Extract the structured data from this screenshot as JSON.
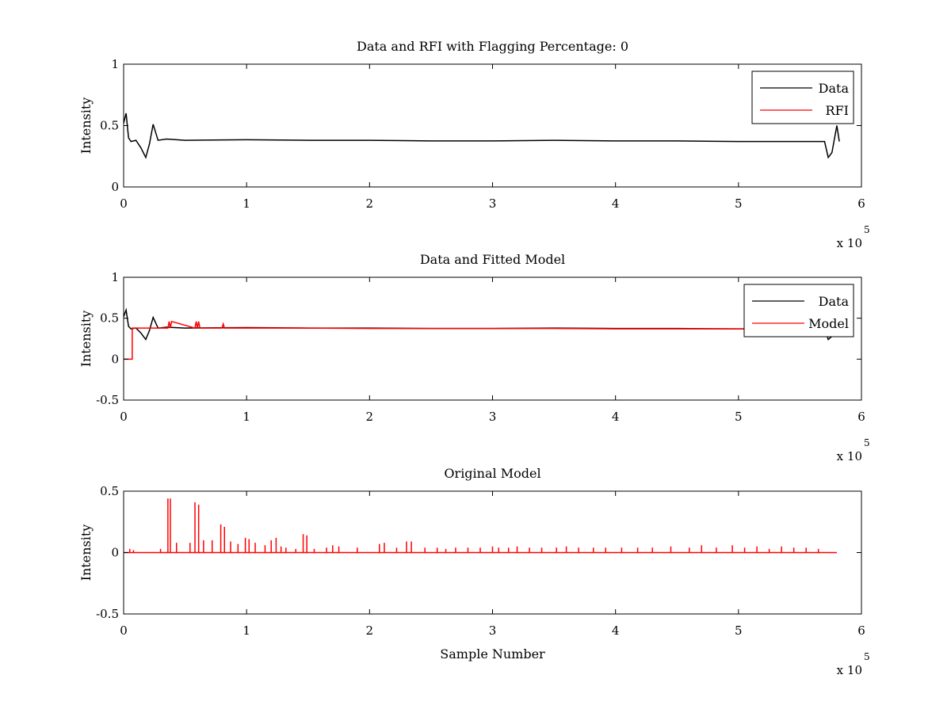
{
  "chart_data": [
    {
      "type": "line",
      "title": "Data and RFI with Flagging Percentage: 0",
      "xlabel": "",
      "ylabel": "Intensity",
      "xlim": [
        0,
        600000
      ],
      "ylim": [
        0,
        1
      ],
      "xticks": [
        "0",
        "1",
        "2",
        "3",
        "4",
        "5",
        "6"
      ],
      "yticks": [
        "0",
        "0.5",
        "1"
      ],
      "x_multiplier": "x 10",
      "x_exponent": "5",
      "legend": {
        "position": "top-right",
        "entries": [
          "Data",
          "RFI"
        ]
      },
      "series": [
        {
          "name": "Data",
          "color": "#000000",
          "x": [
            0,
            2000,
            4000,
            6000,
            10000,
            14000,
            18000,
            21000,
            24000,
            28000,
            35000,
            50000,
            100000,
            150000,
            200000,
            250000,
            300000,
            350000,
            400000,
            450000,
            500000,
            550000,
            570000,
            573000,
            576000,
            580000,
            582000
          ],
          "y": [
            0.52,
            0.6,
            0.4,
            0.37,
            0.38,
            0.32,
            0.24,
            0.35,
            0.51,
            0.38,
            0.39,
            0.38,
            0.385,
            0.38,
            0.38,
            0.375,
            0.375,
            0.38,
            0.375,
            0.375,
            0.37,
            0.37,
            0.37,
            0.24,
            0.28,
            0.5,
            0.37
          ]
        },
        {
          "name": "RFI",
          "color": "#ff0000",
          "x": [],
          "y": []
        }
      ]
    },
    {
      "type": "line",
      "title": "Data and Fitted Model",
      "xlabel": "",
      "ylabel": "Intensity",
      "xlim": [
        0,
        600000
      ],
      "ylim": [
        -0.5,
        1
      ],
      "xticks": [
        "0",
        "1",
        "2",
        "3",
        "4",
        "5",
        "6"
      ],
      "yticks": [
        "-0.5",
        "0",
        "0.5",
        "1"
      ],
      "x_multiplier": "x 10",
      "x_exponent": "5",
      "legend": {
        "position": "top-right",
        "entries": [
          "Data",
          "Model"
        ]
      },
      "series": [
        {
          "name": "Data",
          "color": "#000000",
          "x": [
            0,
            2000,
            4000,
            6000,
            10000,
            14000,
            18000,
            21000,
            24000,
            28000,
            35000,
            50000,
            100000,
            150000,
            200000,
            250000,
            300000,
            350000,
            400000,
            450000,
            500000,
            550000,
            570000,
            573000,
            576000,
            580000,
            582000
          ],
          "y": [
            0.52,
            0.6,
            0.4,
            0.37,
            0.38,
            0.32,
            0.24,
            0.35,
            0.51,
            0.38,
            0.39,
            0.38,
            0.385,
            0.38,
            0.38,
            0.375,
            0.375,
            0.38,
            0.375,
            0.375,
            0.37,
            0.37,
            0.37,
            0.24,
            0.28,
            0.5,
            0.37
          ]
        },
        {
          "name": "Model",
          "color": "#ff0000",
          "x": [
            0,
            7000,
            7000,
            8000,
            10000,
            20000,
            36000,
            37000,
            38000,
            39000,
            58000,
            59000,
            60000,
            61000,
            62000,
            80000,
            81000,
            82000,
            100000,
            150000,
            200000,
            250000,
            300000,
            350000,
            400000,
            450000,
            500000,
            550000,
            580000
          ],
          "y": [
            0.0,
            0.0,
            0.38,
            0.38,
            0.38,
            0.38,
            0.38,
            0.46,
            0.38,
            0.46,
            0.38,
            0.46,
            0.38,
            0.46,
            0.38,
            0.38,
            0.43,
            0.38,
            0.38,
            0.38,
            0.375,
            0.375,
            0.375,
            0.375,
            0.37,
            0.37,
            0.37,
            0.37,
            0.37
          ]
        }
      ]
    },
    {
      "type": "line",
      "title": "Original Model",
      "xlabel": "Sample Number",
      "ylabel": "Intensity",
      "xlim": [
        0,
        600000
      ],
      "ylim": [
        -0.5,
        0.5
      ],
      "xticks": [
        "0",
        "1",
        "2",
        "3",
        "4",
        "5",
        "6"
      ],
      "yticks": [
        "-0.5",
        "0",
        "0.5"
      ],
      "x_multiplier": "x 10",
      "x_exponent": "5",
      "series": [
        {
          "color": "#ff0000",
          "baseline": 0.0,
          "end_x": 580000,
          "spikes": [
            {
              "x": 5000,
              "y": 0.03
            },
            {
              "x": 8000,
              "y": 0.02
            },
            {
              "x": 30000,
              "y": 0.03
            },
            {
              "x": 36000,
              "y": 0.44
            },
            {
              "x": 38000,
              "y": 0.44
            },
            {
              "x": 43000,
              "y": 0.08
            },
            {
              "x": 54000,
              "y": 0.08
            },
            {
              "x": 58000,
              "y": 0.41
            },
            {
              "x": 61000,
              "y": 0.39
            },
            {
              "x": 65000,
              "y": 0.1
            },
            {
              "x": 72000,
              "y": 0.1
            },
            {
              "x": 79000,
              "y": 0.23
            },
            {
              "x": 82000,
              "y": 0.21
            },
            {
              "x": 87000,
              "y": 0.09
            },
            {
              "x": 93000,
              "y": 0.07
            },
            {
              "x": 99000,
              "y": 0.12
            },
            {
              "x": 102000,
              "y": 0.11
            },
            {
              "x": 107000,
              "y": 0.08
            },
            {
              "x": 115000,
              "y": 0.06
            },
            {
              "x": 120000,
              "y": 0.1
            },
            {
              "x": 124000,
              "y": 0.12
            },
            {
              "x": 128000,
              "y": 0.05
            },
            {
              "x": 132000,
              "y": 0.04
            },
            {
              "x": 140000,
              "y": 0.03
            },
            {
              "x": 146000,
              "y": 0.15
            },
            {
              "x": 149000,
              "y": 0.14
            },
            {
              "x": 155000,
              "y": 0.03
            },
            {
              "x": 165000,
              "y": 0.04
            },
            {
              "x": 170000,
              "y": 0.06
            },
            {
              "x": 175000,
              "y": 0.05
            },
            {
              "x": 190000,
              "y": 0.04
            },
            {
              "x": 208000,
              "y": 0.07
            },
            {
              "x": 212000,
              "y": 0.08
            },
            {
              "x": 222000,
              "y": 0.04
            },
            {
              "x": 230000,
              "y": 0.09
            },
            {
              "x": 234000,
              "y": 0.09
            },
            {
              "x": 245000,
              "y": 0.04
            },
            {
              "x": 255000,
              "y": 0.04
            },
            {
              "x": 262000,
              "y": 0.03
            },
            {
              "x": 270000,
              "y": 0.04
            },
            {
              "x": 280000,
              "y": 0.04
            },
            {
              "x": 290000,
              "y": 0.04
            },
            {
              "x": 300000,
              "y": 0.05
            },
            {
              "x": 305000,
              "y": 0.04
            },
            {
              "x": 313000,
              "y": 0.04
            },
            {
              "x": 320000,
              "y": 0.05
            },
            {
              "x": 330000,
              "y": 0.04
            },
            {
              "x": 340000,
              "y": 0.04
            },
            {
              "x": 352000,
              "y": 0.04
            },
            {
              "x": 360000,
              "y": 0.05
            },
            {
              "x": 370000,
              "y": 0.04
            },
            {
              "x": 382000,
              "y": 0.04
            },
            {
              "x": 392000,
              "y": 0.04
            },
            {
              "x": 405000,
              "y": 0.04
            },
            {
              "x": 418000,
              "y": 0.04
            },
            {
              "x": 430000,
              "y": 0.04
            },
            {
              "x": 445000,
              "y": 0.05
            },
            {
              "x": 460000,
              "y": 0.04
            },
            {
              "x": 470000,
              "y": 0.06
            },
            {
              "x": 482000,
              "y": 0.04
            },
            {
              "x": 495000,
              "y": 0.06
            },
            {
              "x": 505000,
              "y": 0.04
            },
            {
              "x": 515000,
              "y": 0.05
            },
            {
              "x": 525000,
              "y": 0.03
            },
            {
              "x": 535000,
              "y": 0.05
            },
            {
              "x": 545000,
              "y": 0.04
            },
            {
              "x": 555000,
              "y": 0.04
            },
            {
              "x": 565000,
              "y": 0.03
            }
          ]
        }
      ]
    }
  ]
}
